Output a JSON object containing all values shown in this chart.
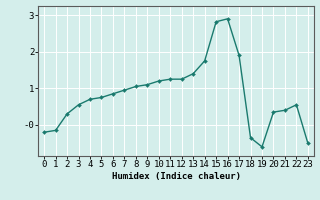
{
  "x": [
    0,
    1,
    2,
    3,
    4,
    5,
    6,
    7,
    8,
    9,
    10,
    11,
    12,
    13,
    14,
    15,
    16,
    17,
    18,
    19,
    20,
    21,
    22,
    23
  ],
  "y": [
    -0.2,
    -0.15,
    0.3,
    0.55,
    0.7,
    0.75,
    0.85,
    0.95,
    1.05,
    1.1,
    1.2,
    1.25,
    1.25,
    1.4,
    1.75,
    2.82,
    2.9,
    1.9,
    -0.35,
    -0.6,
    0.35,
    0.4,
    0.55,
    -0.5
  ],
  "xlabel": "Humidex (Indice chaleur)",
  "xlim": [
    -0.5,
    23.5
  ],
  "ylim": [
    -0.85,
    3.25
  ],
  "xticks": [
    0,
    1,
    2,
    3,
    4,
    5,
    6,
    7,
    8,
    9,
    10,
    11,
    12,
    13,
    14,
    15,
    16,
    17,
    18,
    19,
    20,
    21,
    22,
    23
  ],
  "yticks": [
    0,
    1,
    2,
    3
  ],
  "ytick_labels": [
    "-0",
    "1",
    "2",
    "3"
  ],
  "line_color": "#1a7a6e",
  "marker": "D",
  "marker_size": 2.0,
  "bg_color": "#d4eeeb",
  "grid_color": "#ffffff",
  "axes_color": "#5a5a5a",
  "xlabel_fontsize": 6.5,
  "tick_fontsize": 6.5,
  "line_width": 1.0
}
